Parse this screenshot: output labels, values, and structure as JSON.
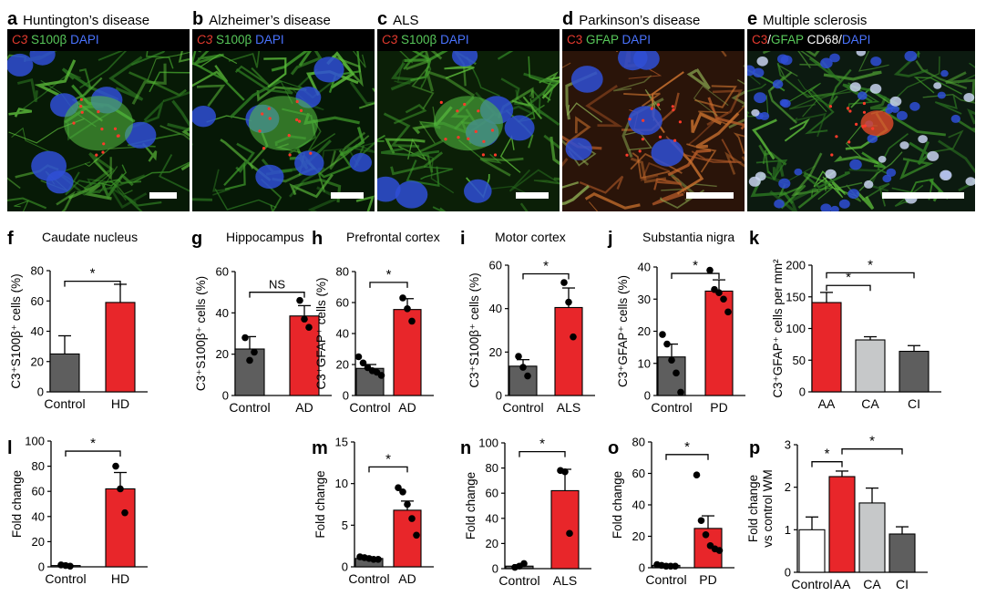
{
  "micro_panels": [
    {
      "letter": "a",
      "title": "Huntington’s disease",
      "stains": [
        {
          "t": "C3",
          "c": "c-red it"
        },
        {
          "t": " S100β",
          "c": "c-green"
        },
        {
          "t": " DAPI",
          "c": "c-blue"
        }
      ],
      "bg": "#071a06"
    },
    {
      "letter": "b",
      "title": "Alzheimer’s disease",
      "stains": [
        {
          "t": "C3",
          "c": "c-red it"
        },
        {
          "t": " S100β",
          "c": "c-green"
        },
        {
          "t": " DAPI",
          "c": "c-blue"
        }
      ],
      "bg": "#061806"
    },
    {
      "letter": "c",
      "title": "ALS",
      "stains": [
        {
          "t": "C3",
          "c": "c-red it"
        },
        {
          "t": " S100β",
          "c": "c-green"
        },
        {
          "t": " DAPI",
          "c": "c-blue"
        }
      ],
      "bg": "#0b1f07"
    },
    {
      "letter": "d",
      "title": "Parkinson’s disease",
      "stains": [
        {
          "t": "C3",
          "c": "c-red"
        },
        {
          "t": " GFAP",
          "c": "c-green"
        },
        {
          "t": " DAPI",
          "c": "c-blue"
        }
      ],
      "bg": "#2a1409"
    },
    {
      "letter": "e",
      "title": "Multiple sclerosis",
      "stains": [
        {
          "t": "C3",
          "c": "c-red"
        },
        {
          "t": "/",
          "c": "c-white"
        },
        {
          "t": "GFAP",
          "c": "c-green"
        },
        {
          "t": " CD68",
          "c": "c-white"
        },
        {
          "t": "/",
          "c": "c-white"
        },
        {
          "t": "DAPI",
          "c": "c-blue"
        }
      ],
      "bg": "#0c1a10"
    }
  ],
  "colors": {
    "control": "#5e5e5e",
    "disease": "#e8262a",
    "ca": "#c6c8c9",
    "white": "#ffffff"
  },
  "chart_data": [
    {
      "panel": "f",
      "title": "Caudate nucleus",
      "type": "bar",
      "ylabel": "C3⁺S100β⁺ cells (%)",
      "ylim": [
        0,
        80
      ],
      "ticks": [
        0,
        20,
        40,
        60,
        80
      ],
      "categories": [
        "Control",
        "HD"
      ],
      "values": [
        25,
        59
      ],
      "errors": [
        12,
        12
      ],
      "colors": [
        "control",
        "disease"
      ],
      "points": [
        [],
        []
      ],
      "sig": [
        {
          "from": 0,
          "to": 1,
          "label": "*",
          "y": 73
        }
      ]
    },
    {
      "panel": "g",
      "title": "Hippocampus",
      "type": "bar",
      "ylabel": "C3⁺S100β⁺ cells (%)",
      "ylim": [
        0,
        60
      ],
      "ticks": [
        0,
        20,
        40,
        60
      ],
      "categories": [
        "Control",
        "AD"
      ],
      "values": [
        22.5,
        38.5
      ],
      "errors": [
        6,
        5
      ],
      "colors": [
        "control",
        "disease"
      ],
      "points": [
        [
          28,
          17,
          21
        ],
        [
          46,
          37,
          33
        ]
      ],
      "sig": [
        {
          "from": 0,
          "to": 1,
          "label": "NS",
          "y": 50
        }
      ]
    },
    {
      "panel": "h",
      "title": "Prefrontal cortex",
      "type": "bar",
      "ylabel": "C3⁺GFAP⁺ cells (%)",
      "ylim": [
        0,
        80
      ],
      "ticks": [
        0,
        20,
        40,
        60,
        80
      ],
      "categories": [
        "Control",
        "AD"
      ],
      "values": [
        17.5,
        55.5
      ],
      "errors": [
        2.5,
        7
      ],
      "colors": [
        "control",
        "disease"
      ],
      "points": [
        [
          25,
          21,
          18,
          16,
          15,
          13
        ],
        [
          63,
          56,
          48
        ]
      ],
      "sig": [
        {
          "from": 0,
          "to": 1,
          "label": "*",
          "y": 73
        }
      ]
    },
    {
      "panel": "i",
      "title": "Motor cortex",
      "type": "bar",
      "ylabel": "C3⁺S100β⁺ cells (%)",
      "ylim": [
        0,
        60
      ],
      "ticks": [
        0,
        20,
        40,
        60
      ],
      "categories": [
        "Control",
        "ALS"
      ],
      "values": [
        13.5,
        40.5
      ],
      "errors": [
        3,
        9
      ],
      "colors": [
        "control",
        "disease"
      ],
      "points": [
        [
          18,
          13,
          9
        ],
        [
          52,
          43,
          27
        ]
      ],
      "sig": [
        {
          "from": 0,
          "to": 1,
          "label": "*",
          "y": 56
        }
      ]
    },
    {
      "panel": "j",
      "title": "Substantia nigra",
      "type": "bar",
      "ylabel": "C3⁺GFAP⁺ cells (%)",
      "ylim": [
        0,
        40
      ],
      "ticks": [
        0,
        10,
        20,
        30,
        40
      ],
      "categories": [
        "Control",
        "PD"
      ],
      "values": [
        12,
        32.5
      ],
      "errors": [
        4,
        3.5
      ],
      "colors": [
        "control",
        "disease"
      ],
      "points": [
        [
          19,
          16,
          11,
          7,
          1
        ],
        [
          39,
          33,
          32,
          30,
          26
        ]
      ],
      "sig": [
        {
          "from": 0,
          "to": 1,
          "label": "*",
          "y": 38
        }
      ]
    },
    {
      "panel": "k",
      "title": "",
      "type": "bar",
      "ylabel": "C3⁺GFAP⁺ cells per mm²",
      "ylim": [
        0,
        200
      ],
      "ticks": [
        0,
        50,
        100,
        150,
        200
      ],
      "categories": [
        "AA",
        "CA",
        "CI"
      ],
      "values": [
        141,
        82,
        64
      ],
      "errors": [
        16,
        5,
        9
      ],
      "colors": [
        "disease",
        "ca",
        "control"
      ],
      "points": [
        [],
        [],
        []
      ],
      "sig": [
        {
          "from": 0,
          "to": 1,
          "label": "*",
          "y": 168
        },
        {
          "from": 0,
          "to": 2,
          "label": "*",
          "y": 188
        }
      ]
    },
    {
      "panel": "l",
      "title": "",
      "type": "bar",
      "ylabel": "Fold change",
      "ylim": [
        0,
        100
      ],
      "ticks": [
        0,
        20,
        40,
        60,
        80,
        100
      ],
      "categories": [
        "Control",
        "HD"
      ],
      "values": [
        1,
        62
      ],
      "errors": [
        0.5,
        13
      ],
      "colors": [
        "control",
        "disease"
      ],
      "points": [
        [
          1.5,
          1,
          0.5
        ],
        [
          80,
          62,
          43
        ]
      ],
      "sig": [
        {
          "from": 0,
          "to": 1,
          "label": "*",
          "y": 92
        }
      ]
    },
    {
      "panel": "m",
      "title": "",
      "type": "bar",
      "ylabel": "Fold change",
      "ylim": [
        0,
        15
      ],
      "ticks": [
        0,
        5,
        10,
        15
      ],
      "categories": [
        "Control",
        "AD"
      ],
      "values": [
        1,
        6.8
      ],
      "errors": [
        0.1,
        1.1
      ],
      "colors": [
        "control",
        "disease"
      ],
      "points": [
        [
          1.2,
          1.1,
          1,
          0.9,
          0.9
        ],
        [
          9.5,
          9,
          7.5,
          5.8,
          3.8
        ]
      ],
      "sig": [
        {
          "from": 0,
          "to": 1,
          "label": "*",
          "y": 12
        }
      ]
    },
    {
      "panel": "n",
      "title": "",
      "type": "bar",
      "ylabel": "Fold change",
      "ylim": [
        0,
        100
      ],
      "ticks": [
        0,
        20,
        40,
        60,
        80,
        100
      ],
      "categories": [
        "Control",
        "ALS"
      ],
      "values": [
        2,
        62
      ],
      "errors": [
        1,
        17
      ],
      "colors": [
        "control",
        "disease"
      ],
      "points": [
        [
          1,
          2,
          4
        ],
        [
          78,
          77,
          28
        ]
      ],
      "sig": [
        {
          "from": 0,
          "to": 1,
          "label": "*",
          "y": 93
        }
      ]
    },
    {
      "panel": "o",
      "title": "",
      "type": "bar",
      "ylabel": "Fold change",
      "ylim": [
        0,
        80
      ],
      "ticks": [
        0,
        20,
        40,
        60,
        80
      ],
      "categories": [
        "Control",
        "PD"
      ],
      "values": [
        1.5,
        25
      ],
      "errors": [
        0.8,
        8
      ],
      "colors": [
        "control",
        "disease"
      ],
      "points": [
        [
          2,
          1.5,
          1,
          1,
          1
        ],
        [
          59,
          30,
          21,
          14,
          12,
          11
        ]
      ],
      "sig": [
        {
          "from": 0,
          "to": 1,
          "label": "*",
          "y": 72
        }
      ]
    },
    {
      "panel": "p",
      "title": "",
      "type": "bar",
      "ylabel": "Fold change vs control WM",
      "ylim": [
        0,
        3
      ],
      "ticks": [
        0,
        1,
        2,
        3
      ],
      "categories": [
        "Control",
        "AA",
        "CA",
        "CI"
      ],
      "values": [
        1,
        2.25,
        1.63,
        0.9
      ],
      "errors": [
        0.3,
        0.13,
        0.35,
        0.17
      ],
      "colors": [
        "white",
        "disease",
        "ca",
        "control"
      ],
      "points": [
        [],
        [],
        [],
        []
      ],
      "sig": [
        {
          "from": 0,
          "to": 1,
          "label": "*",
          "y": 2.6
        },
        {
          "from": 1,
          "to": 3,
          "label": "*",
          "y": 2.9
        }
      ]
    }
  ]
}
